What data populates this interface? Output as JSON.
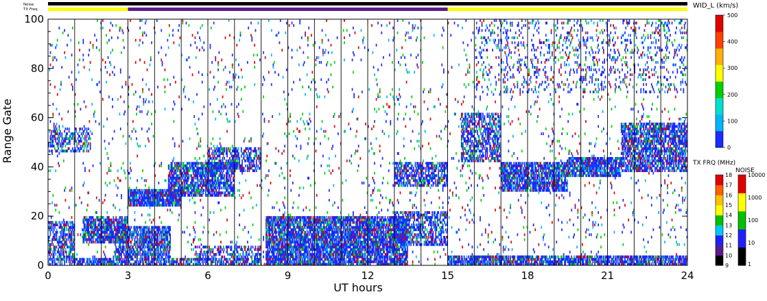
{
  "header": {
    "noise_label": "Noise",
    "txfreq_label": "TX Freq",
    "param_title": "WID_L (km/s)"
  },
  "chart_data": {
    "type": "heatmap",
    "title": "",
    "xlabel": "UT hours",
    "ylabel": "Range Gate",
    "xlim": [
      0,
      24
    ],
    "ylim": [
      0,
      100
    ],
    "xticks": [
      0,
      3,
      6,
      9,
      12,
      15,
      18,
      21,
      24
    ],
    "yticks": [
      0,
      20,
      40,
      60,
      80,
      100
    ],
    "scan_boundaries_hours": [
      1,
      2,
      3,
      4,
      5,
      6,
      7,
      8,
      9,
      10,
      11,
      12,
      13,
      14,
      15,
      16,
      17,
      18,
      19,
      20,
      21,
      22,
      23
    ],
    "noise_bar": {
      "color": "#000000",
      "range_hours": [
        0,
        24
      ]
    },
    "txfreq_bar": [
      {
        "range_hours": [
          0,
          3
        ],
        "color": "#ffff00"
      },
      {
        "range_hours": [
          3,
          15
        ],
        "color": "#5a1b8c"
      },
      {
        "range_hours": [
          15,
          24
        ],
        "color": "#ffff00"
      }
    ],
    "colorbar_width": {
      "label": "WID_L (km/s)",
      "ticks": [
        0,
        100,
        200,
        300,
        400,
        500
      ],
      "range": [
        0,
        500
      ],
      "colors": [
        "#1a2cff",
        "#00b4ff",
        "#00e0d0",
        "#00d000",
        "#ffff00",
        "#ffb000",
        "#ff4000",
        "#e00000"
      ]
    },
    "colorbar_txfreq": {
      "label": "TX FRQ (MHz)",
      "ticks": [
        9,
        10,
        11,
        12,
        13,
        14,
        15,
        16,
        17,
        18
      ],
      "colors": [
        "#000000",
        "#5a1b8c",
        "#2020ff",
        "#00c8ff",
        "#00c000",
        "#ffff00",
        "#ffc000",
        "#ff6000",
        "#e00000"
      ]
    },
    "colorbar_noise": {
      "label": "NOISE",
      "ticks": [
        "1",
        "10",
        "100",
        "1000",
        "10000"
      ],
      "colors": [
        "#000000",
        "#2020ff",
        "#00c000",
        "#ffff00",
        "#e00000"
      ]
    },
    "scatter_regions": [
      {
        "x": [
          0,
          1.0
        ],
        "y": [
          0,
          18
        ],
        "density": 0.55
      },
      {
        "x": [
          1.0,
          3.0
        ],
        "y": [
          0,
          3
        ],
        "density": 0.7
      },
      {
        "x": [
          1.3,
          3.0
        ],
        "y": [
          9,
          20
        ],
        "density": 0.75
      },
      {
        "x": [
          2.5,
          4.6
        ],
        "y": [
          3,
          16
        ],
        "density": 0.7
      },
      {
        "x": [
          3.0,
          5.0
        ],
        "y": [
          24,
          31
        ],
        "density": 0.85
      },
      {
        "x": [
          4.5,
          7.0
        ],
        "y": [
          28,
          42
        ],
        "density": 0.7
      },
      {
        "x": [
          6.0,
          8.0
        ],
        "y": [
          38,
          48
        ],
        "density": 0.5
      },
      {
        "x": [
          3.0,
          8.0
        ],
        "y": [
          0,
          3
        ],
        "density": 0.6
      },
      {
        "x": [
          5.5,
          8.0
        ],
        "y": [
          2,
          8
        ],
        "density": 0.45
      },
      {
        "x": [
          0,
          1.6
        ],
        "y": [
          46,
          56
        ],
        "density": 0.4
      },
      {
        "x": [
          8.2,
          13.5
        ],
        "y": [
          0,
          20
        ],
        "density": 0.8
      },
      {
        "x": [
          13.0,
          15.0
        ],
        "y": [
          8,
          22
        ],
        "density": 0.5
      },
      {
        "x": [
          13.0,
          15.0
        ],
        "y": [
          32,
          42
        ],
        "density": 0.6
      },
      {
        "x": [
          15.0,
          24.0
        ],
        "y": [
          0,
          4
        ],
        "density": 0.75
      },
      {
        "x": [
          15.5,
          17.0
        ],
        "y": [
          42,
          62
        ],
        "density": 0.55
      },
      {
        "x": [
          17.0,
          19.5
        ],
        "y": [
          30,
          42
        ],
        "density": 0.75
      },
      {
        "x": [
          19.5,
          21.5
        ],
        "y": [
          36,
          44
        ],
        "density": 0.8
      },
      {
        "x": [
          21.5,
          24.0
        ],
        "y": [
          38,
          58
        ],
        "density": 0.65
      },
      {
        "x": [
          16.0,
          24.0
        ],
        "y": [
          70,
          100
        ],
        "density": 0.12
      },
      {
        "x": [
          0,
          24.0
        ],
        "y": [
          0,
          100
        ],
        "density": 0.03
      }
    ]
  }
}
